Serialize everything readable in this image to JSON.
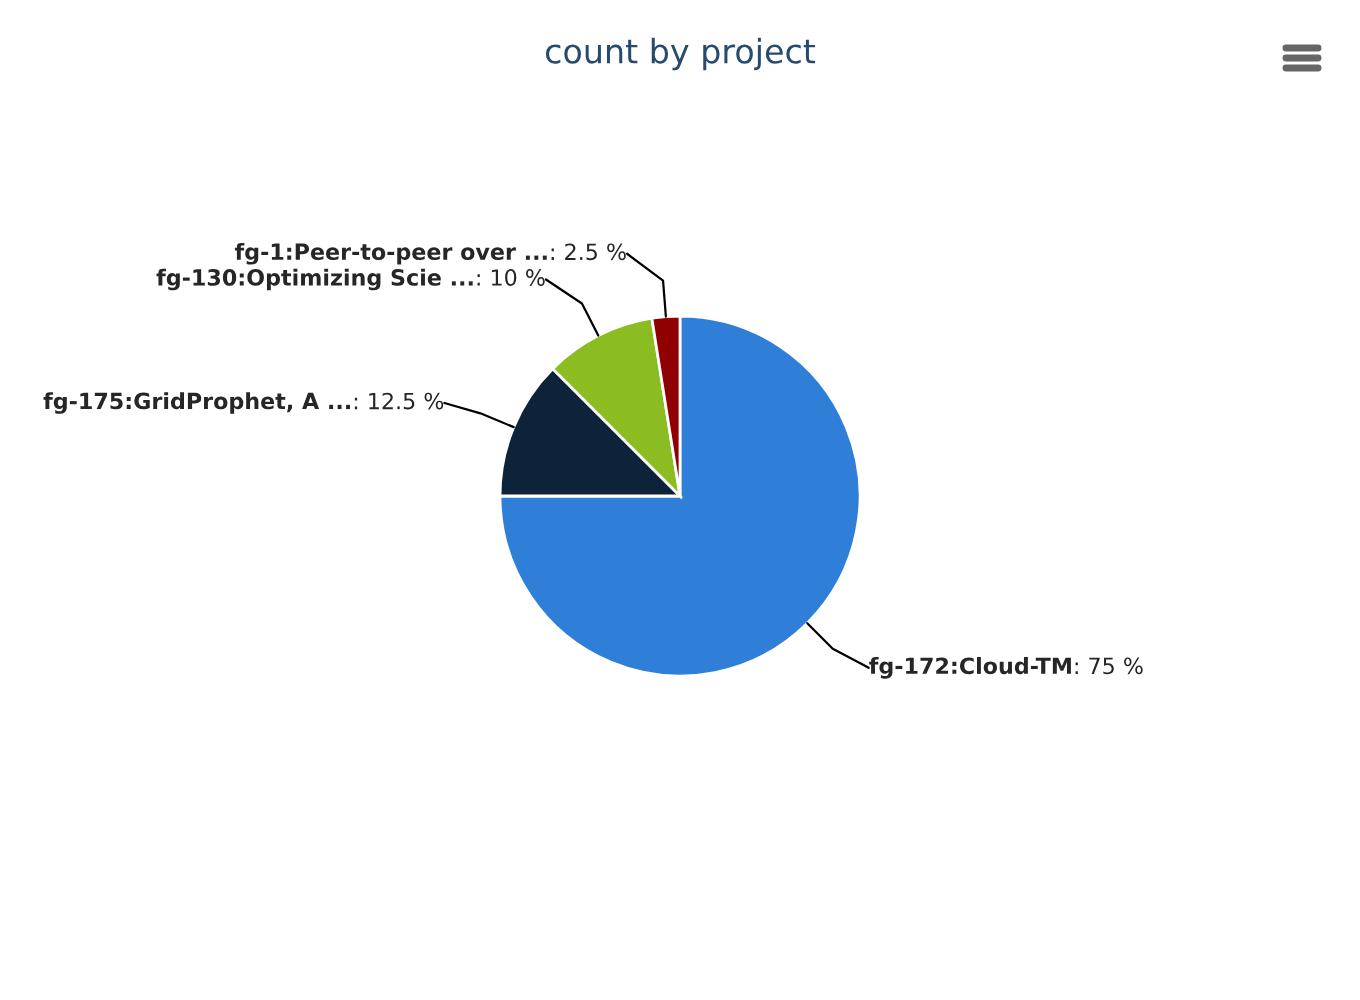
{
  "chart_data": {
    "type": "pie",
    "title": "count by project",
    "categories": [
      "fg-172:Cloud-TM",
      "fg-175:GridProphet, A ...",
      "fg-130:Optimizing Scie ...",
      "fg-1:Peer-to-peer over ..."
    ],
    "values": [
      75,
      12.5,
      10,
      2.5
    ],
    "colors": [
      "#2f7ed8",
      "#0d233a",
      "#8bbc21",
      "#910000"
    ],
    "value_labels": [
      ": 75 %",
      ": 12.5 %",
      ": 10 %",
      ": 2.5 %"
    ]
  }
}
